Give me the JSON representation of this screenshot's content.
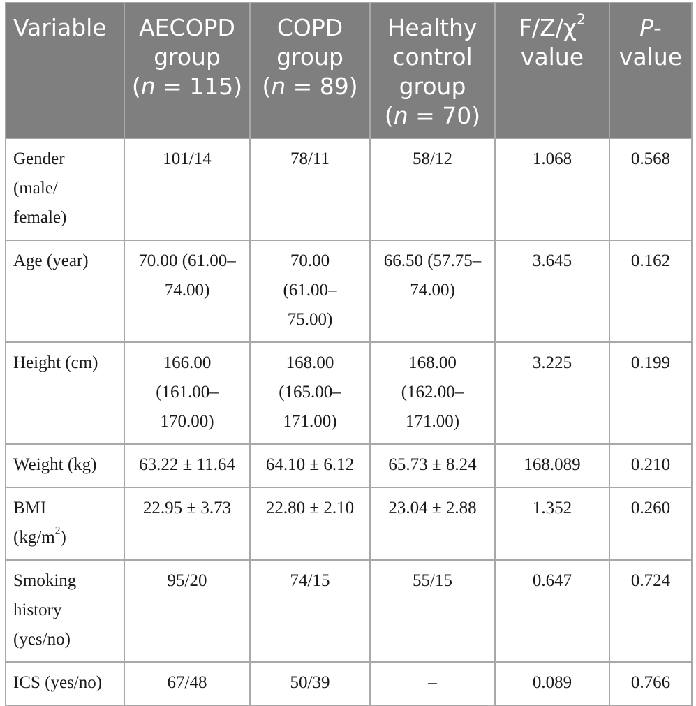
{
  "header": {
    "variable": "Variable",
    "aecopd": {
      "l1": "AECOPD",
      "l2": "group",
      "l3a": "(",
      "l3n": "n",
      "l3b": " = 115)"
    },
    "copd": {
      "l1": "COPD",
      "l2": "group",
      "l3a": "(",
      "l3n": "n",
      "l3b": " = 89)"
    },
    "healthy": {
      "l1": "Healthy",
      "l2": "control",
      "l3": "group",
      "l4a": "(",
      "l4n": "n",
      "l4b": " = 70)"
    },
    "stat": {
      "l1": "F/Z/χ",
      "l1sup": "2",
      "l2": "value"
    },
    "pvalue": {
      "l1a": "P",
      "l1b": "-",
      "l2": "value"
    }
  },
  "rows": [
    {
      "variable": [
        "Gender",
        "(male/",
        "female)"
      ],
      "aecopd": [
        "101/14"
      ],
      "copd": [
        "78/11"
      ],
      "healthy": [
        "58/12"
      ],
      "stat": "1.068",
      "p": "0.568"
    },
    {
      "variable": [
        "Age (year)"
      ],
      "aecopd": [
        "70.00 (61.00–",
        "74.00)"
      ],
      "copd": [
        "70.00",
        "(61.00–",
        "75.00)"
      ],
      "healthy": [
        "66.50 (57.75–",
        "74.00)"
      ],
      "stat": "3.645",
      "p": "0.162"
    },
    {
      "variable": [
        "Height (cm)"
      ],
      "aecopd": [
        "166.00",
        "(161.00–",
        "170.00)"
      ],
      "copd": [
        "168.00",
        "(165.00–",
        "171.00)"
      ],
      "healthy": [
        "168.00",
        "(162.00–",
        "171.00)"
      ],
      "stat": "3.225",
      "p": "0.199"
    },
    {
      "variable": [
        "Weight (kg)"
      ],
      "aecopd": [
        "63.22 ± 11.64"
      ],
      "copd": [
        "64.10 ± 6.12"
      ],
      "healthy": [
        "65.73 ± 8.24"
      ],
      "stat": "168.089",
      "p": "0.210"
    },
    {
      "variable": [
        "BMI",
        "(kg/m",
        "2",
        ")"
      ],
      "aecopd": [
        "22.95 ± 3.73"
      ],
      "copd": [
        "22.80 ± 2.10"
      ],
      "healthy": [
        "23.04 ± 2.88"
      ],
      "stat": "1.352",
      "p": "0.260"
    },
    {
      "variable": [
        "Smoking",
        "history",
        "(yes/no)"
      ],
      "aecopd": [
        "95/20"
      ],
      "copd": [
        "74/15"
      ],
      "healthy": [
        "55/15"
      ],
      "stat": "0.647",
      "p": "0.724"
    },
    {
      "variable": [
        "ICS (yes/no)"
      ],
      "aecopd": [
        "67/48"
      ],
      "copd": [
        "50/39"
      ],
      "healthy": [
        "–"
      ],
      "stat": "0.089",
      "p": "0.766"
    }
  ]
}
